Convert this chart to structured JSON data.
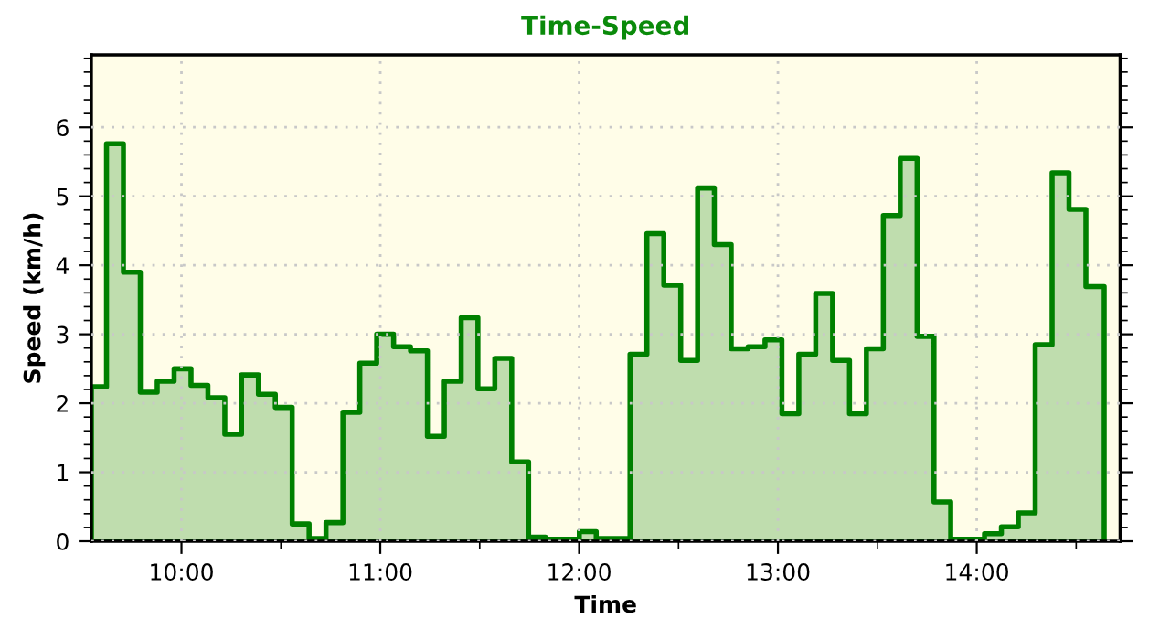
{
  "chart_data": {
    "type": "area",
    "title": "Time-Speed",
    "xlabel": "Time",
    "ylabel": "Speed (km/h)",
    "x": [
      9.547,
      9.623,
      9.708,
      9.793,
      9.878,
      9.963,
      10.048,
      10.133,
      10.218,
      10.302,
      10.387,
      10.472,
      10.557,
      10.642,
      10.727,
      10.812,
      10.897,
      10.982,
      11.067,
      11.152,
      11.237,
      11.322,
      11.407,
      11.491,
      11.576,
      11.661,
      11.746,
      11.831,
      11.916,
      12.001,
      12.086,
      12.171,
      12.256,
      12.341,
      12.426,
      12.511,
      12.596,
      12.68,
      12.765,
      12.85,
      12.935,
      13.02,
      13.105,
      13.19,
      13.275,
      13.36,
      13.445,
      13.53,
      13.615,
      13.7,
      13.785,
      13.869,
      13.954,
      14.039,
      14.124,
      14.209,
      14.294,
      14.379,
      14.464,
      14.549,
      14.641
    ],
    "series": [
      {
        "color": "#008000",
        "values": [
          2.24,
          5.76,
          3.9,
          2.16,
          2.32,
          2.5,
          2.26,
          2.08,
          1.55,
          2.41,
          2.13,
          1.94,
          0.25,
          0.04,
          0.27,
          1.87,
          2.58,
          3.0,
          2.82,
          2.76,
          1.52,
          2.32,
          3.24,
          2.21,
          2.65,
          1.15,
          0.06,
          0.03,
          0.03,
          0.14,
          0.04,
          0.04,
          2.71,
          4.46,
          3.71,
          2.62,
          5.12,
          4.3,
          2.79,
          2.82,
          2.92,
          1.85,
          2.71,
          3.59,
          2.62,
          1.85,
          2.79,
          4.72,
          5.55,
          2.97,
          0.57,
          0.03,
          0.03,
          0.11,
          0.21,
          0.41,
          2.85,
          5.34,
          4.81,
          3.69,
          3.69
        ]
      }
    ],
    "xlim": [
      9.547,
      14.721
    ],
    "ylim": [
      0,
      7.05
    ],
    "xticks": [
      {
        "value": 10,
        "label": "10:00"
      },
      {
        "value": 11,
        "label": "11:00"
      },
      {
        "value": 12,
        "label": "12:00"
      },
      {
        "value": 13,
        "label": "13:00"
      },
      {
        "value": 14,
        "label": "14:00"
      }
    ],
    "yticks": [
      0,
      1,
      2,
      3,
      4,
      5,
      6
    ],
    "grid": true,
    "line_style": "solid",
    "marker": "none"
  }
}
